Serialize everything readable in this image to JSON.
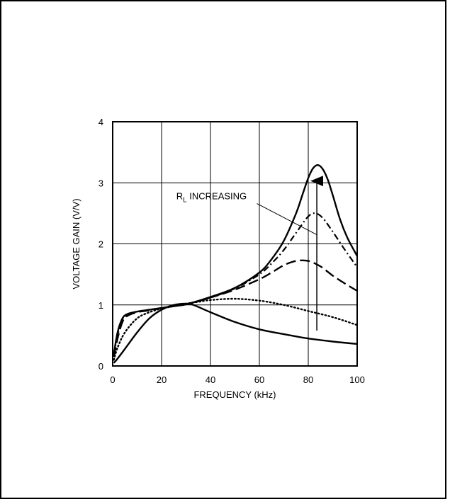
{
  "chart_data": {
    "type": "line",
    "xlabel": "FREQUENCY (kHz)",
    "ylabel": "VOLTAGE GAIN (V/V)",
    "xlim": [
      0,
      100
    ],
    "ylim": [
      0,
      4
    ],
    "grid": true,
    "x_ticks": [
      0,
      20,
      40,
      60,
      80,
      100
    ],
    "y_ticks": [
      0,
      1,
      2,
      3,
      4
    ],
    "annotation": {
      "text_main": "R",
      "text_sub": "L",
      "text_rest": " INCREASING"
    },
    "series": [
      {
        "style": "solid",
        "x": [
          0.5,
          2,
          5,
          10,
          15,
          20,
          25,
          30,
          33,
          40,
          50,
          60,
          70,
          80,
          90,
          100
        ],
        "y": [
          0.05,
          0.12,
          0.28,
          0.55,
          0.78,
          0.92,
          1.0,
          1.02,
          1.0,
          0.88,
          0.72,
          0.6,
          0.52,
          0.45,
          0.4,
          0.36
        ]
      },
      {
        "style": "dotted",
        "x": [
          0.5,
          2,
          5,
          10,
          15,
          20,
          25,
          30,
          35,
          40,
          50,
          60,
          70,
          80,
          90,
          100
        ],
        "y": [
          0.1,
          0.3,
          0.55,
          0.78,
          0.88,
          0.94,
          0.98,
          1.02,
          1.05,
          1.08,
          1.1,
          1.07,
          1.0,
          0.9,
          0.8,
          0.67
        ]
      },
      {
        "style": "long-dash",
        "x": [
          0.5,
          2,
          4,
          6,
          10,
          15,
          20,
          25,
          30,
          40,
          50,
          60,
          65,
          70,
          75,
          80,
          85,
          90,
          95,
          100
        ],
        "y": [
          0.15,
          0.45,
          0.72,
          0.82,
          0.88,
          0.91,
          0.95,
          0.98,
          1.01,
          1.12,
          1.25,
          1.42,
          1.53,
          1.65,
          1.72,
          1.72,
          1.63,
          1.48,
          1.35,
          1.23
        ]
      },
      {
        "style": "dash-dot",
        "x": [
          0.5,
          2,
          4,
          6,
          10,
          15,
          20,
          25,
          30,
          40,
          50,
          60,
          65,
          70,
          75,
          80,
          83,
          86,
          90,
          95,
          100
        ],
        "y": [
          0.18,
          0.5,
          0.75,
          0.84,
          0.89,
          0.92,
          0.95,
          0.98,
          1.01,
          1.12,
          1.27,
          1.5,
          1.68,
          1.9,
          2.18,
          2.45,
          2.5,
          2.42,
          2.2,
          1.9,
          1.62
        ]
      },
      {
        "style": "solid",
        "x": [
          0.5,
          2,
          4,
          6,
          10,
          15,
          20,
          25,
          30,
          40,
          50,
          60,
          65,
          70,
          75,
          78,
          80,
          82,
          84,
          86,
          88,
          90,
          93,
          96,
          100
        ],
        "y": [
          0.2,
          0.55,
          0.78,
          0.85,
          0.89,
          0.92,
          0.95,
          0.98,
          1.01,
          1.13,
          1.28,
          1.53,
          1.75,
          2.05,
          2.5,
          2.85,
          3.08,
          3.24,
          3.29,
          3.22,
          3.05,
          2.8,
          2.4,
          2.1,
          1.8
        ]
      }
    ]
  }
}
